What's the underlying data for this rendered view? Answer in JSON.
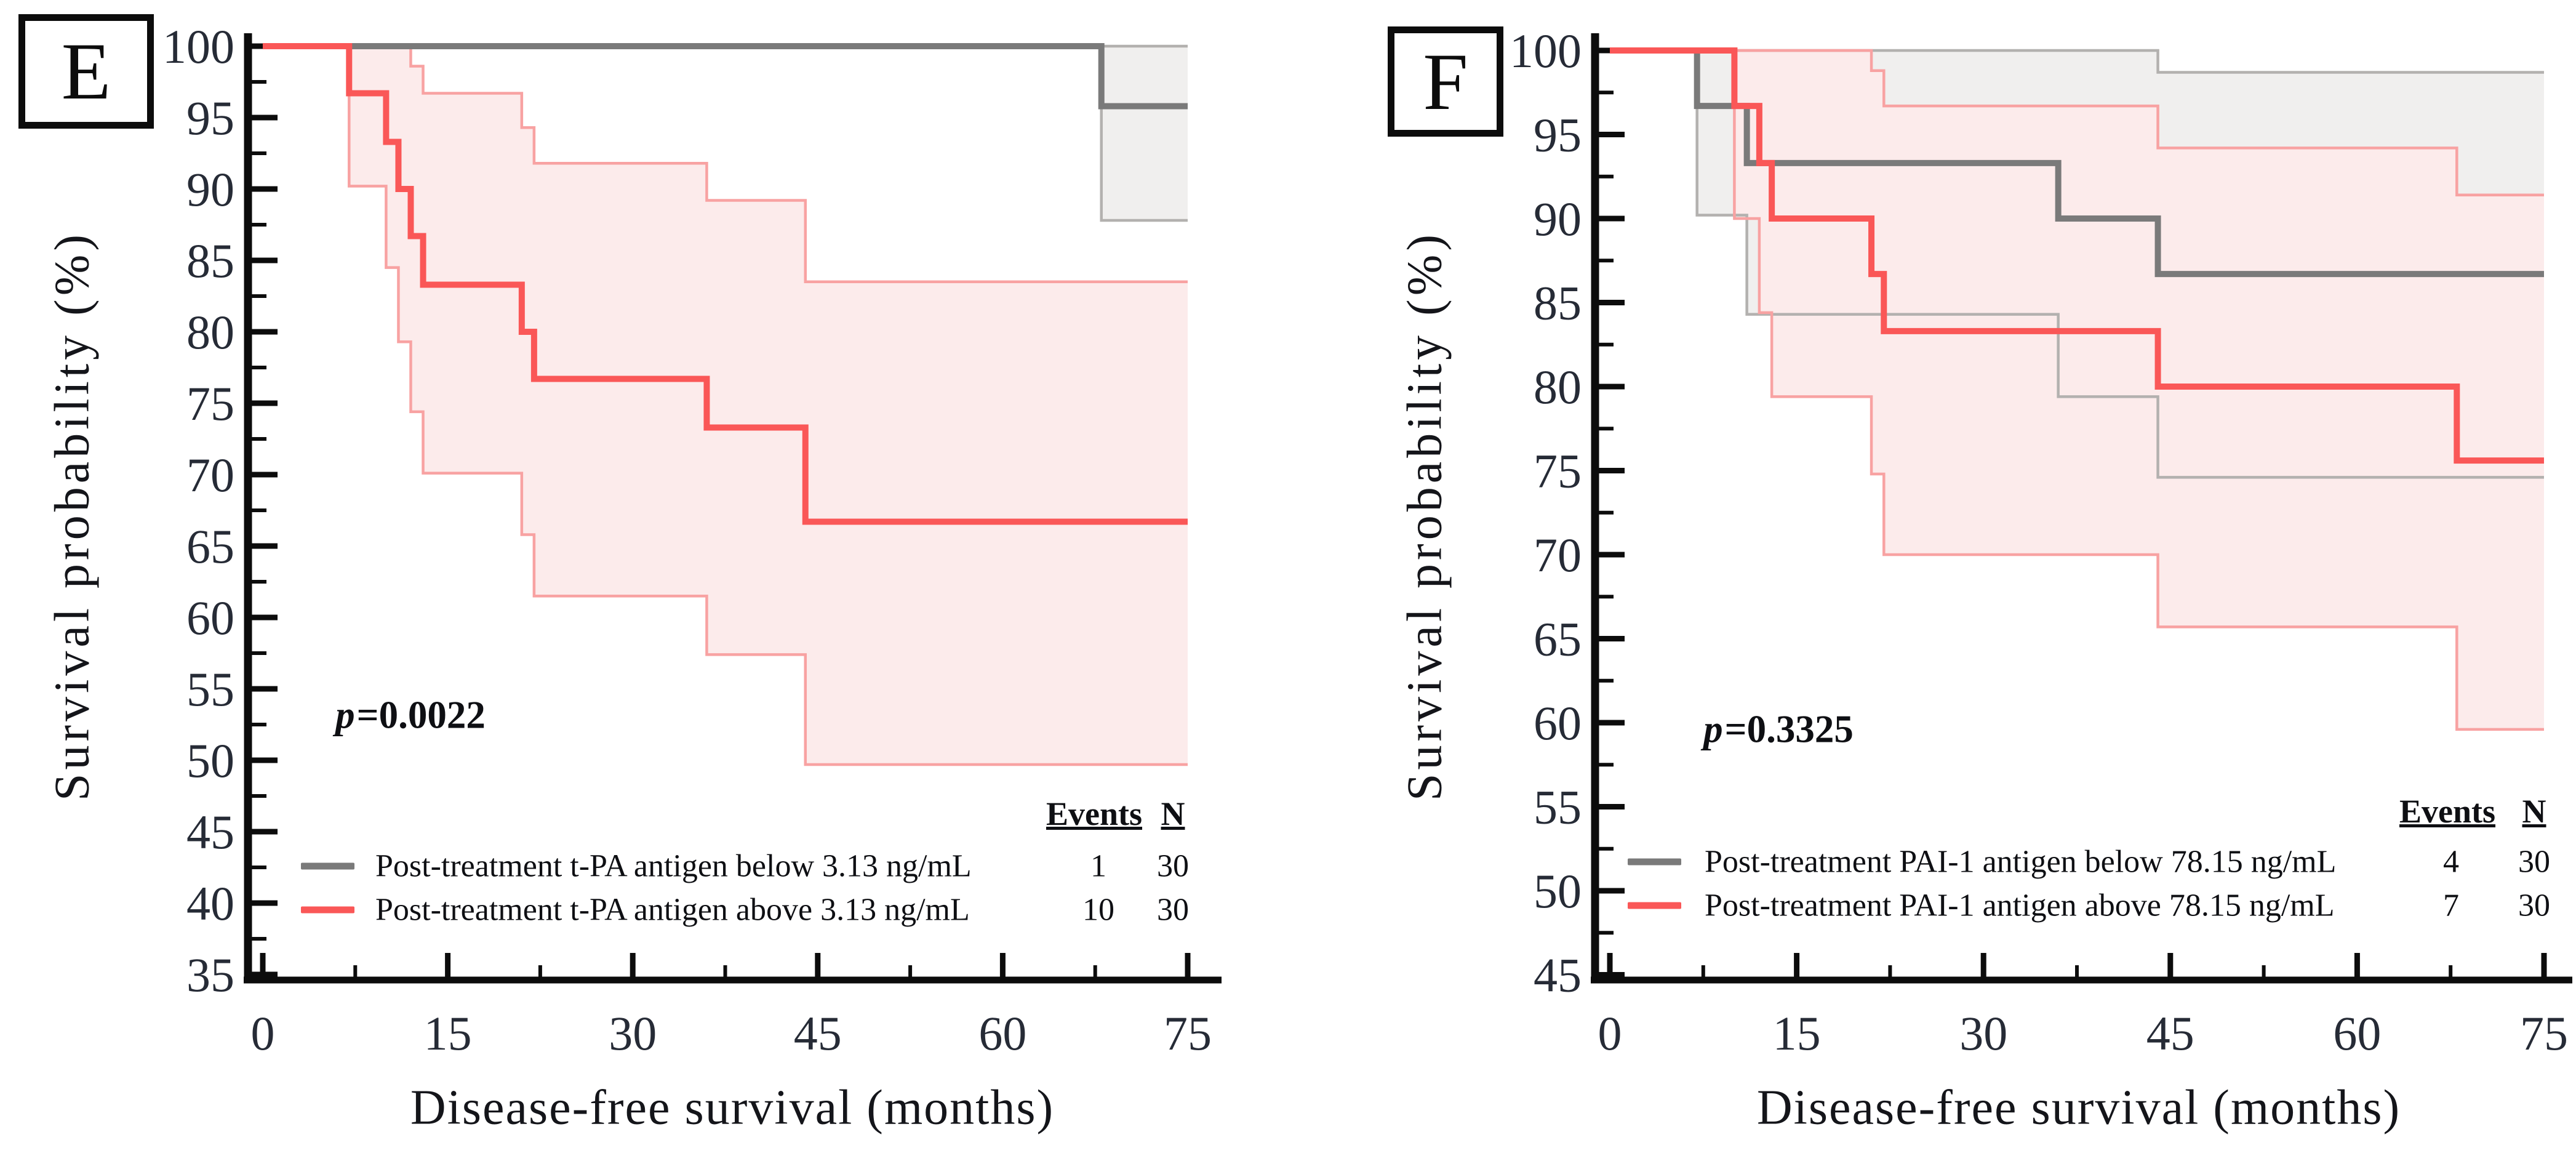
{
  "colors": {
    "gray_line": "#7a7a7a",
    "gray_ci_line": "#b3b1af",
    "gray_ci_fill": "#f0efee",
    "red_line": "#fa5757",
    "red_ci_line": "#f8a2a2",
    "red_ci_fill": "#fcebeb",
    "axis": "#0c0c0c"
  },
  "legend": {
    "events_header": "Events",
    "n_header": "N"
  },
  "chart_data": [
    {
      "type": "line",
      "panel_label": "E",
      "xlabel": "Disease-free survival (months)",
      "ylabel": "Survival probability (%)",
      "xlim": [
        0,
        75
      ],
      "ylim": [
        35,
        100
      ],
      "x_ticks": [
        0,
        15,
        30,
        45,
        60,
        75
      ],
      "y_ticks": [
        35,
        40,
        45,
        50,
        55,
        60,
        65,
        70,
        75,
        80,
        85,
        90,
        95,
        100
      ],
      "grid": false,
      "p_symbol": "p",
      "p_value": "=0.0022",
      "series": [
        {
          "name": "Post-treatment t-PA antigen below 3.13 ng/mL",
          "events": "1",
          "n": "30",
          "color_key": "gray",
          "steps": [
            [
              0,
              100
            ],
            [
              68,
              100
            ],
            [
              68,
              95.8
            ],
            [
              75,
              95.8
            ]
          ],
          "ci_upper": [
            [
              68,
              100
            ],
            [
              75,
              100
            ]
          ],
          "ci_lower": [
            [
              68,
              100
            ],
            [
              68,
              87.8
            ],
            [
              75,
              87.8
            ]
          ]
        },
        {
          "name": "Post-treatment t-PA antigen above 3.13 ng/mL",
          "events": "10",
          "n": "30",
          "color_key": "red",
          "steps": [
            [
              0,
              100
            ],
            [
              7,
              100
            ],
            [
              7,
              96.7
            ],
            [
              10,
              96.7
            ],
            [
              10,
              93.3
            ],
            [
              11,
              93.3
            ],
            [
              11,
              90
            ],
            [
              12,
              90
            ],
            [
              12,
              86.7
            ],
            [
              13,
              86.7
            ],
            [
              13,
              83.3
            ],
            [
              21,
              83.3
            ],
            [
              21,
              80
            ],
            [
              22,
              80
            ],
            [
              22,
              76.7
            ],
            [
              36,
              76.7
            ],
            [
              36,
              73.3
            ],
            [
              44,
              73.3
            ],
            [
              44,
              66.7
            ],
            [
              75,
              66.7
            ]
          ],
          "ci_upper": [
            [
              7,
              100
            ],
            [
              12,
              100
            ],
            [
              12,
              98.6
            ],
            [
              13,
              98.6
            ],
            [
              13,
              96.7
            ],
            [
              21,
              96.7
            ],
            [
              21,
              94.3
            ],
            [
              22,
              94.3
            ],
            [
              22,
              91.8
            ],
            [
              36,
              91.8
            ],
            [
              36,
              89.2
            ],
            [
              44,
              89.2
            ],
            [
              44,
              83.5
            ],
            [
              75,
              83.5
            ]
          ],
          "ci_lower": [
            [
              7,
              100
            ],
            [
              7,
              90.2
            ],
            [
              10,
              90.2
            ],
            [
              10,
              84.5
            ],
            [
              11,
              84.5
            ],
            [
              11,
              79.3
            ],
            [
              12,
              79.3
            ],
            [
              12,
              74.4
            ],
            [
              13,
              74.4
            ],
            [
              13,
              70.1
            ],
            [
              21,
              70.1
            ],
            [
              21,
              65.8
            ],
            [
              22,
              65.8
            ],
            [
              22,
              61.5
            ],
            [
              36,
              61.5
            ],
            [
              36,
              57.4
            ],
            [
              44,
              57.4
            ],
            [
              44,
              49.7
            ],
            [
              75,
              49.7
            ]
          ]
        }
      ]
    },
    {
      "type": "line",
      "panel_label": "F",
      "xlabel": "Disease-free survival (months)",
      "ylabel": "Survival probability (%)",
      "xlim": [
        0,
        75
      ],
      "ylim": [
        45,
        100
      ],
      "x_ticks": [
        0,
        15,
        30,
        45,
        60,
        75
      ],
      "y_ticks": [
        45,
        50,
        55,
        60,
        65,
        70,
        75,
        80,
        85,
        90,
        95,
        100
      ],
      "grid": false,
      "p_symbol": "p",
      "p_value": "=0.3325",
      "series": [
        {
          "name": "Post-treatment PAI-1 antigen below 78.15 ng/mL",
          "events": "4",
          "n": "30",
          "color_key": "gray",
          "steps": [
            [
              0,
              100
            ],
            [
              7,
              100
            ],
            [
              7,
              96.7
            ],
            [
              11,
              96.7
            ],
            [
              11,
              93.3
            ],
            [
              36,
              93.3
            ],
            [
              36,
              90
            ],
            [
              44,
              90
            ],
            [
              44,
              86.7
            ],
            [
              75,
              86.7
            ]
          ],
          "ci_upper": [
            [
              7,
              100
            ],
            [
              44,
              100
            ],
            [
              44,
              98.7
            ],
            [
              75,
              98.7
            ]
          ],
          "ci_lower": [
            [
              7,
              100
            ],
            [
              7,
              90.2
            ],
            [
              11,
              90.2
            ],
            [
              11,
              84.3
            ],
            [
              36,
              84.3
            ],
            [
              36,
              79.4
            ],
            [
              44,
              79.4
            ],
            [
              44,
              74.6
            ],
            [
              75,
              74.6
            ]
          ]
        },
        {
          "name": "Post-treatment PAI-1 antigen above 78.15 ng/mL",
          "events": "7",
          "n": "30",
          "color_key": "red",
          "steps": [
            [
              0,
              100
            ],
            [
              10,
              100
            ],
            [
              10,
              96.7
            ],
            [
              12,
              96.7
            ],
            [
              12,
              93.3
            ],
            [
              13,
              93.3
            ],
            [
              13,
              90
            ],
            [
              21,
              90
            ],
            [
              21,
              86.7
            ],
            [
              22,
              86.7
            ],
            [
              22,
              83.3
            ],
            [
              44,
              83.3
            ],
            [
              44,
              80
            ],
            [
              68,
              80
            ],
            [
              68,
              75.6
            ],
            [
              75,
              75.6
            ]
          ],
          "ci_upper": [
            [
              10,
              100
            ],
            [
              21,
              100
            ],
            [
              21,
              98.8
            ],
            [
              22,
              98.8
            ],
            [
              22,
              96.7
            ],
            [
              44,
              96.7
            ],
            [
              44,
              94.2
            ],
            [
              68,
              94.2
            ],
            [
              68,
              91.4
            ],
            [
              75,
              91.4
            ]
          ],
          "ci_lower": [
            [
              10,
              100
            ],
            [
              10,
              90
            ],
            [
              12,
              90
            ],
            [
              12,
              84.4
            ],
            [
              13,
              84.4
            ],
            [
              13,
              79.4
            ],
            [
              21,
              79.4
            ],
            [
              21,
              74.8
            ],
            [
              22,
              74.8
            ],
            [
              22,
              70
            ],
            [
              44,
              70
            ],
            [
              44,
              65.7
            ],
            [
              68,
              65.7
            ],
            [
              68,
              59.6
            ],
            [
              75,
              59.6
            ]
          ]
        }
      ]
    }
  ]
}
